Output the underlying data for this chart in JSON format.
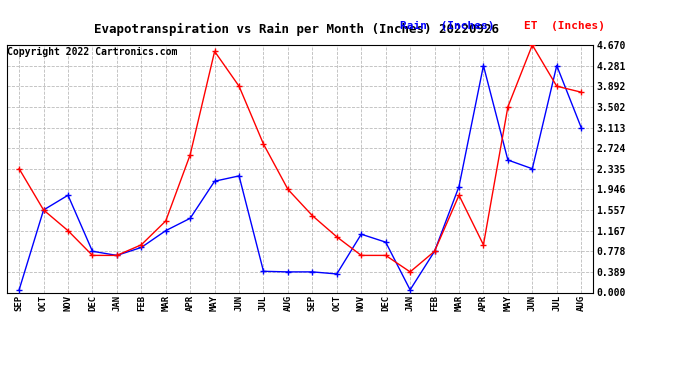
{
  "title": "Evapotranspiration vs Rain per Month (Inches) 20220926",
  "copyright": "Copyright 2022 Cartronics.com",
  "legend_rain": "Rain  (Inches)",
  "legend_et": "ET  (Inches)",
  "months": [
    "SEP",
    "OCT",
    "NOV",
    "DEC",
    "JAN",
    "FEB",
    "MAR",
    "APR",
    "MAY",
    "JUN",
    "JUL",
    "AUG",
    "SEP",
    "OCT",
    "NOV",
    "DEC",
    "JAN",
    "FEB",
    "MAR",
    "APR",
    "MAY",
    "JUN",
    "JUL",
    "AUG"
  ],
  "rain": [
    0.05,
    1.557,
    1.835,
    0.778,
    0.7,
    0.85,
    1.167,
    1.4,
    2.1,
    2.2,
    0.4,
    0.389,
    0.389,
    0.35,
    1.1,
    0.95,
    0.05,
    0.778,
    2.0,
    4.281,
    2.5,
    2.335,
    4.281,
    3.113
  ],
  "et": [
    2.335,
    1.557,
    1.167,
    0.7,
    0.7,
    0.9,
    1.35,
    2.6,
    4.55,
    3.892,
    2.8,
    1.946,
    1.45,
    1.05,
    0.7,
    0.7,
    0.389,
    0.778,
    1.835,
    0.9,
    3.502,
    4.67,
    3.892,
    3.78
  ],
  "ylim": [
    0.0,
    4.67
  ],
  "yticks": [
    0.0,
    0.389,
    0.778,
    1.167,
    1.557,
    1.946,
    2.335,
    2.724,
    3.113,
    3.502,
    3.892,
    4.281,
    4.67
  ],
  "rain_color": "blue",
  "et_color": "red",
  "bg_color": "#ffffff",
  "grid_color": "#bbbbbb",
  "title_fontsize": 9,
  "copyright_fontsize": 7,
  "legend_fontsize": 8
}
